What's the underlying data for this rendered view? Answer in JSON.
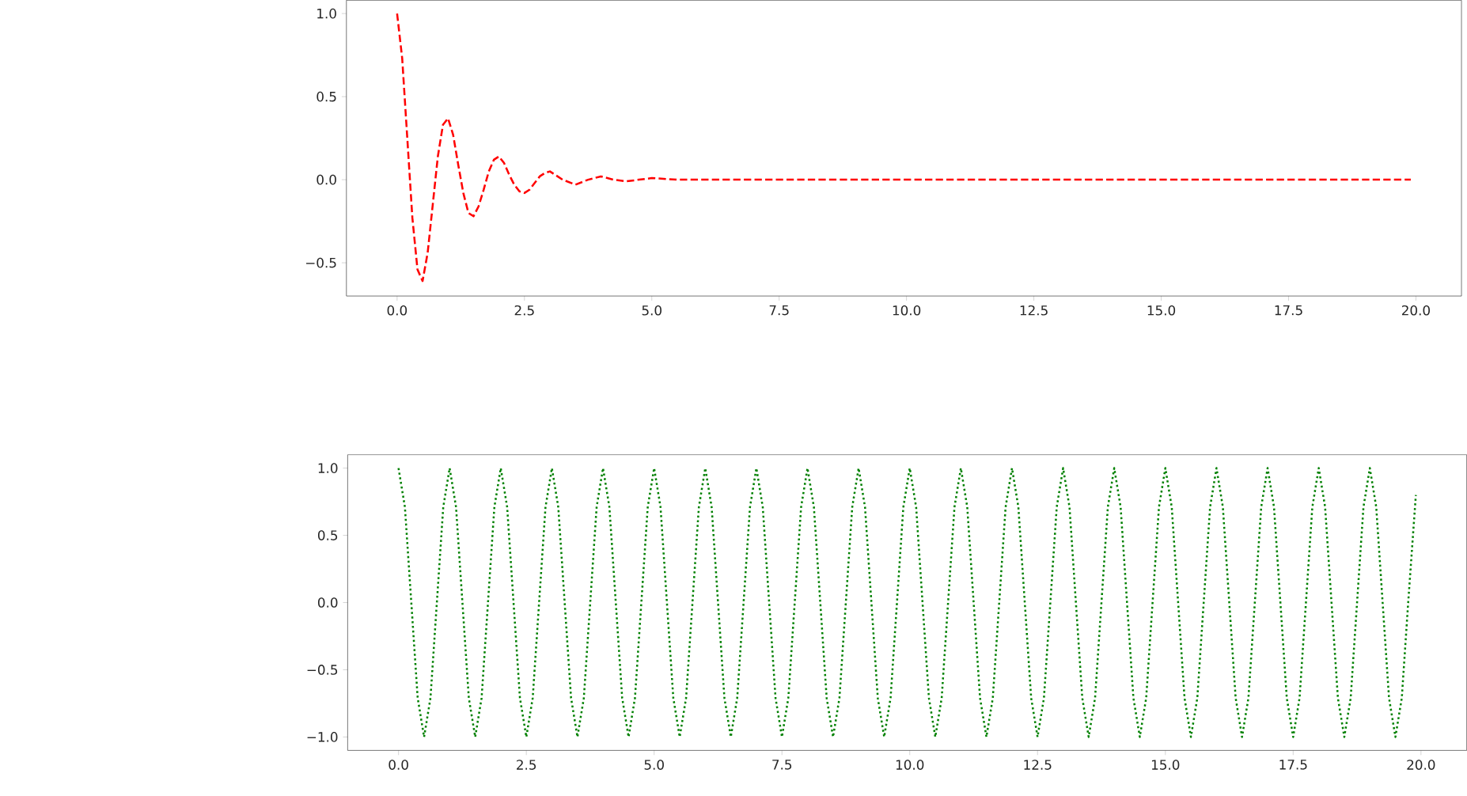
{
  "chart_data": [
    {
      "type": "line",
      "line_style": "dashed",
      "series": [
        {
          "color": "#ff0000",
          "x": [
            0,
            0.1,
            0.2,
            0.3,
            0.4,
            0.5,
            0.6,
            0.7,
            0.8,
            0.9,
            1.0,
            1.1,
            1.2,
            1.3,
            1.4,
            1.5,
            1.6,
            1.7,
            1.8,
            1.9,
            2.0,
            2.1,
            2.2,
            2.3,
            2.4,
            2.5,
            2.6,
            2.7,
            2.8,
            2.9,
            3.0,
            3.25,
            3.5,
            3.75,
            4.0,
            4.25,
            4.5,
            4.75,
            5.0,
            5.5,
            10.0,
            15.0,
            19.9
          ],
          "values": [
            1,
            0.73,
            0.25,
            -0.23,
            -0.54,
            -0.61,
            -0.44,
            -0.15,
            0.14,
            0.33,
            0.37,
            0.27,
            0.09,
            -0.08,
            -0.2,
            -0.22,
            -0.16,
            -0.06,
            0.05,
            0.12,
            0.14,
            0.1,
            0.03,
            -0.03,
            -0.07,
            -0.08,
            -0.06,
            -0.02,
            0.02,
            0.04,
            0.05,
            0,
            -0.03,
            0,
            0.02,
            0,
            -0.01,
            0,
            0.01,
            0,
            0,
            0,
            0
          ]
        }
      ],
      "xlim": [
        -0.995,
        20.895
      ],
      "ylim": [
        -0.7,
        1.08
      ],
      "xticks": [
        {
          "value": 0,
          "label": "0.0"
        },
        2.5,
        {
          "value": 5,
          "label": "5.0"
        },
        7.5,
        {
          "value": 10,
          "label": "10.0"
        },
        12.5,
        {
          "value": 15,
          "label": "15.0"
        },
        17.5,
        {
          "value": 20,
          "label": "20.0"
        }
      ],
      "yticks": [
        {
          "value": -0.5,
          "label": "−0.5"
        },
        {
          "value": 0,
          "label": "0.0"
        },
        0.5,
        {
          "value": 1,
          "label": "1.0"
        }
      ]
    },
    {
      "type": "line",
      "line_style": "dotted",
      "series": [
        {
          "color": "#008000",
          "x": [
            0,
            0.125,
            0.25,
            0.375,
            0.5,
            0.625,
            0.75,
            0.875,
            1,
            1.125,
            1.25,
            1.375,
            1.5,
            1.625,
            1.75,
            1.875,
            2,
            2.125,
            2.25,
            2.375,
            2.5,
            2.625,
            2.75,
            2.875,
            3,
            3.125,
            3.25,
            3.375,
            3.5,
            3.625,
            3.75,
            3.875,
            4,
            4.125,
            4.25,
            4.375,
            4.5,
            4.625,
            4.75,
            4.875,
            5,
            5.125,
            5.25,
            5.375,
            5.5,
            5.625,
            5.75,
            5.875,
            6,
            6.125,
            6.25,
            6.375,
            6.5,
            6.625,
            6.75,
            6.875,
            7,
            7.125,
            7.25,
            7.375,
            7.5,
            7.625,
            7.75,
            7.875,
            8,
            8.125,
            8.25,
            8.375,
            8.5,
            8.625,
            8.75,
            8.875,
            9,
            9.125,
            9.25,
            9.375,
            9.5,
            9.625,
            9.75,
            9.875,
            10,
            10.125,
            10.25,
            10.375,
            10.5,
            10.625,
            10.75,
            10.875,
            11,
            11.125,
            11.25,
            11.375,
            11.5,
            11.625,
            11.75,
            11.875,
            12,
            12.125,
            12.25,
            12.375,
            12.5,
            12.625,
            12.75,
            12.875,
            13,
            13.125,
            13.25,
            13.375,
            13.5,
            13.625,
            13.75,
            13.875,
            14,
            14.125,
            14.25,
            14.375,
            14.5,
            14.625,
            14.75,
            14.875,
            15,
            15.125,
            15.25,
            15.375,
            15.5,
            15.625,
            15.75,
            15.875,
            16,
            16.125,
            16.25,
            16.375,
            16.5,
            16.625,
            16.75,
            16.875,
            17,
            17.125,
            17.25,
            17.375,
            17.5,
            17.625,
            17.75,
            17.875,
            18,
            18.125,
            18.25,
            18.375,
            18.5,
            18.625,
            18.75,
            18.875,
            19,
            19.125,
            19.25,
            19.375,
            19.5,
            19.625,
            19.75,
            19.9
          ],
          "values": [
            1,
            0.71,
            0,
            -0.71,
            -1,
            -0.71,
            0,
            0.71,
            1,
            0.71,
            0,
            -0.71,
            -1,
            -0.71,
            0,
            0.71,
            1,
            0.71,
            0,
            -0.71,
            -1,
            -0.71,
            0,
            0.71,
            1,
            0.71,
            0,
            -0.71,
            -1,
            -0.71,
            0,
            0.71,
            1,
            0.71,
            0,
            -0.71,
            -1,
            -0.71,
            0,
            0.71,
            1,
            0.71,
            0,
            -0.71,
            -1,
            -0.71,
            0,
            0.71,
            1,
            0.71,
            0,
            -0.71,
            -1,
            -0.71,
            0,
            0.71,
            1,
            0.71,
            0,
            -0.71,
            -1,
            -0.71,
            0,
            0.71,
            1,
            0.71,
            0,
            -0.71,
            -1,
            -0.71,
            0,
            0.71,
            1,
            0.71,
            0,
            -0.71,
            -1,
            -0.71,
            0,
            0.71,
            1,
            0.71,
            0,
            -0.71,
            -1,
            -0.71,
            0,
            0.71,
            1,
            0.71,
            0,
            -0.71,
            -1,
            -0.71,
            0,
            0.71,
            1,
            0.71,
            0,
            -0.71,
            -1,
            -0.71,
            0,
            0.71,
            1,
            0.71,
            0,
            -0.71,
            -1,
            -0.71,
            0,
            0.71,
            1,
            0.71,
            0,
            -0.71,
            -1,
            -0.71,
            0,
            0.71,
            1,
            0.71,
            0,
            -0.71,
            -1,
            -0.71,
            0,
            0.71,
            1,
            0.71,
            0,
            -0.71,
            -1,
            -0.71,
            0,
            0.71,
            1,
            0.71,
            0,
            -0.71,
            -1,
            -0.71,
            0,
            0.71,
            1,
            0.71,
            0,
            -0.71,
            -1,
            -0.71,
            0,
            0.71,
            1,
            0.71,
            0,
            -0.71,
            -1,
            -0.71,
            0,
            0.8
          ]
        }
      ],
      "xlim": [
        -0.995,
        20.895
      ],
      "ylim": [
        -1.1,
        1.1
      ],
      "xticks": [
        {
          "value": 0,
          "label": "0.0"
        },
        2.5,
        {
          "value": 5,
          "label": "5.0"
        },
        7.5,
        {
          "value": 10,
          "label": "10.0"
        },
        12.5,
        {
          "value": 15,
          "label": "15.0"
        },
        17.5,
        {
          "value": 20,
          "label": "20.0"
        }
      ],
      "yticks": [
        {
          "value": -1,
          "label": "−1.0"
        },
        {
          "value": -0.5,
          "label": "−0.5"
        },
        {
          "value": 0,
          "label": "0.0"
        },
        0.5,
        {
          "value": 1,
          "label": "1.0"
        }
      ]
    }
  ]
}
